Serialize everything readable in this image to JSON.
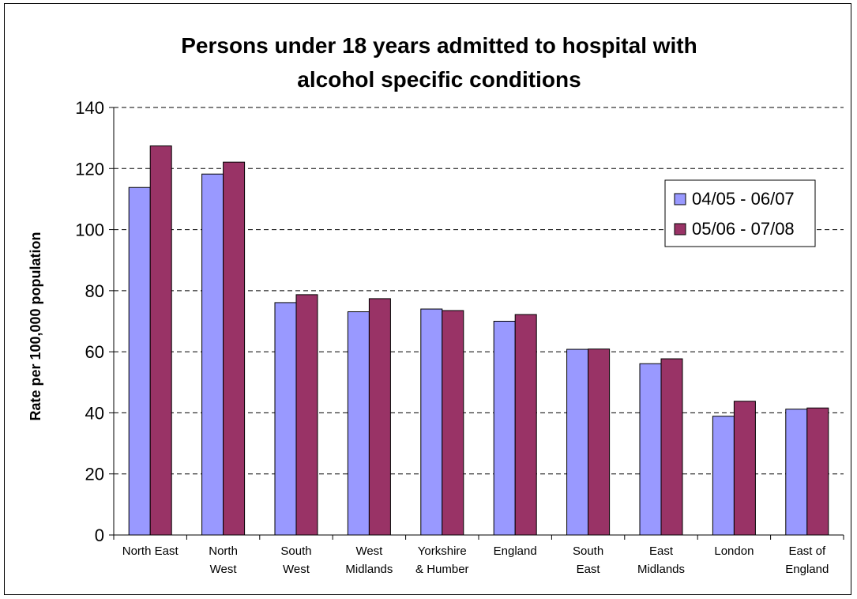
{
  "chart_data": {
    "type": "bar",
    "title_lines": [
      "Persons under 18 years admitted to hospital with",
      "alcohol specific conditions"
    ],
    "xlabel": "",
    "ylabel": "Rate per 100,000 population",
    "ylim": [
      0,
      140
    ],
    "yticks": [
      0,
      20,
      40,
      60,
      80,
      100,
      120,
      140
    ],
    "grid": "horizontal-dashed",
    "legend_position": "top-right",
    "categories": [
      [
        "North East"
      ],
      [
        "North",
        "West"
      ],
      [
        "South",
        "West"
      ],
      [
        "West",
        "Midlands"
      ],
      [
        "Yorkshire",
        "& Humber"
      ],
      [
        "England"
      ],
      [
        "South",
        "East"
      ],
      [
        "East",
        "Midlands"
      ],
      [
        "London"
      ],
      [
        "East of",
        "England"
      ]
    ],
    "series": [
      {
        "name": "04/05 - 06/07",
        "color": "#9999ff",
        "values": [
          113.8,
          118.2,
          76.1,
          73.1,
          74,
          70,
          60.8,
          56.1,
          38.9,
          41.2
        ]
      },
      {
        "name": "05/06 - 07/08",
        "color": "#993366",
        "values": [
          127.4,
          122.1,
          78.7,
          77.4,
          73.5,
          72.2,
          60.9,
          57.7,
          43.8,
          41.6
        ]
      }
    ]
  }
}
